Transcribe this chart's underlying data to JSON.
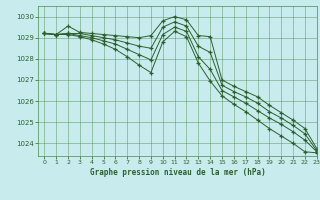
{
  "title": "Graphe pression niveau de la mer (hPa)",
  "background_color": "#c8eced",
  "grid_color": "#4a8a4a",
  "line_color": "#2d5f2d",
  "xlim": [
    -0.5,
    23
  ],
  "ylim": [
    1023.4,
    1030.5
  ],
  "yticks": [
    1024,
    1025,
    1026,
    1027,
    1028,
    1029,
    1030
  ],
  "xticks": [
    0,
    1,
    2,
    3,
    4,
    5,
    6,
    7,
    8,
    9,
    10,
    11,
    12,
    13,
    14,
    15,
    16,
    17,
    18,
    19,
    20,
    21,
    22,
    23
  ],
  "series": [
    [
      1029.2,
      1029.15,
      1029.55,
      1029.25,
      1029.2,
      1029.15,
      1029.1,
      1029.05,
      1029.0,
      1029.1,
      1029.8,
      1030.0,
      1029.85,
      1029.1,
      1029.05,
      1027.0,
      1026.7,
      1026.45,
      1026.2,
      1025.8,
      1025.45,
      1025.1,
      1024.7,
      1023.75
    ],
    [
      1029.2,
      1029.15,
      1029.2,
      1029.2,
      1029.1,
      1029.0,
      1028.9,
      1028.75,
      1028.6,
      1028.5,
      1029.5,
      1029.75,
      1029.55,
      1028.6,
      1028.3,
      1026.75,
      1026.45,
      1026.2,
      1025.9,
      1025.5,
      1025.2,
      1024.85,
      1024.45,
      1023.65
    ],
    [
      1029.2,
      1029.15,
      1029.2,
      1029.1,
      1029.0,
      1028.85,
      1028.7,
      1028.45,
      1028.2,
      1027.95,
      1029.15,
      1029.5,
      1029.3,
      1028.1,
      1027.5,
      1026.5,
      1026.2,
      1025.9,
      1025.55,
      1025.2,
      1024.9,
      1024.55,
      1024.15,
      1023.6
    ],
    [
      1029.2,
      1029.15,
      1029.15,
      1029.05,
      1028.9,
      1028.7,
      1028.45,
      1028.1,
      1027.7,
      1027.35,
      1028.8,
      1029.3,
      1029.05,
      1027.8,
      1026.95,
      1026.25,
      1025.85,
      1025.5,
      1025.1,
      1024.7,
      1024.35,
      1024.0,
      1023.6,
      1023.55
    ]
  ]
}
